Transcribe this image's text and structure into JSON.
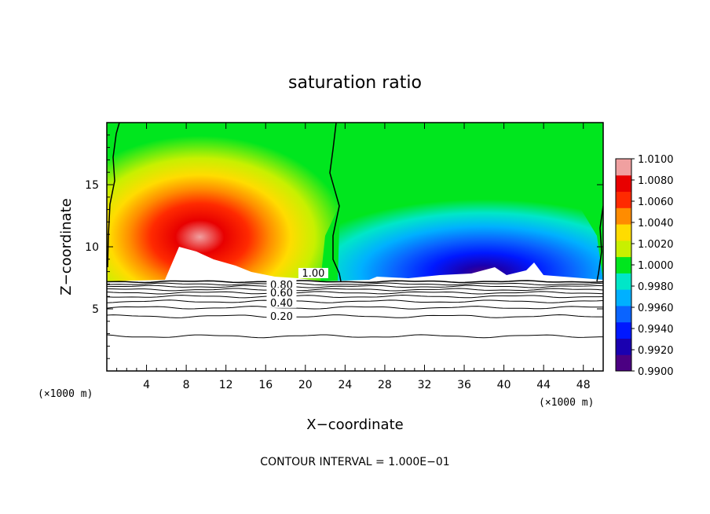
{
  "chart_data": {
    "type": "heatmap",
    "title": "saturation ratio",
    "xlabel": "X−coordinate",
    "ylabel": "Z−coordinate",
    "x_unit_label": "(×1000 m)",
    "xlim": [
      0,
      50
    ],
    "ylim": [
      0,
      20
    ],
    "x_ticks": [
      4,
      8,
      12,
      16,
      20,
      24,
      28,
      32,
      36,
      40,
      44,
      48
    ],
    "y_ticks": [
      5,
      10,
      15
    ],
    "colorbar": {
      "levels": [
        0.99,
        0.992,
        0.994,
        0.996,
        0.998,
        1.0,
        1.002,
        1.004,
        1.006,
        1.008,
        1.01
      ],
      "tick_labels": [
        "0.9900",
        "0.9920",
        "0.9940",
        "0.9960",
        "0.9980",
        "1.0000",
        "1.0020",
        "1.0040",
        "1.0060",
        "1.0080",
        "1.0100"
      ],
      "colors": [
        "#4b0082",
        "#1a00b0",
        "#0018ff",
        "#0a64ff",
        "#00b0ff",
        "#00e6c8",
        "#00e61e",
        "#c8f000",
        "#ffdc00",
        "#ff8c00",
        "#ff2a00",
        "#e80000",
        "#f0a0a0"
      ]
    },
    "filled_field": {
      "description_levels_only": true,
      "surface_z": 7.2,
      "regions": [
        {
          "x_range": [
            0,
            22
          ],
          "z_range": [
            7.2,
            20
          ],
          "max_value": 1.01
        },
        {
          "x_range": [
            22,
            50
          ],
          "z_range": [
            7.2,
            20
          ],
          "min_value": 0.99
        }
      ]
    },
    "contour_lines": {
      "interval": 0.1,
      "labels": [
        "1.00",
        "0.80",
        "0.60",
        "0.40",
        "0.20"
      ],
      "levels_z": [
        {
          "level": 1.0,
          "z": 7.2
        },
        {
          "level": 0.9,
          "z": 7.0
        },
        {
          "level": 0.8,
          "z": 6.8
        },
        {
          "level": 0.7,
          "z": 6.55
        },
        {
          "level": 0.6,
          "z": 6.3
        },
        {
          "level": 0.5,
          "z": 6.0
        },
        {
          "level": 0.4,
          "z": 5.6
        },
        {
          "level": 0.3,
          "z": 5.1
        },
        {
          "level": 0.2,
          "z": 4.4
        },
        {
          "level": 0.1,
          "z": 2.8
        }
      ]
    },
    "footnote": "CONTOUR INTERVAL = 1.000E−01"
  }
}
